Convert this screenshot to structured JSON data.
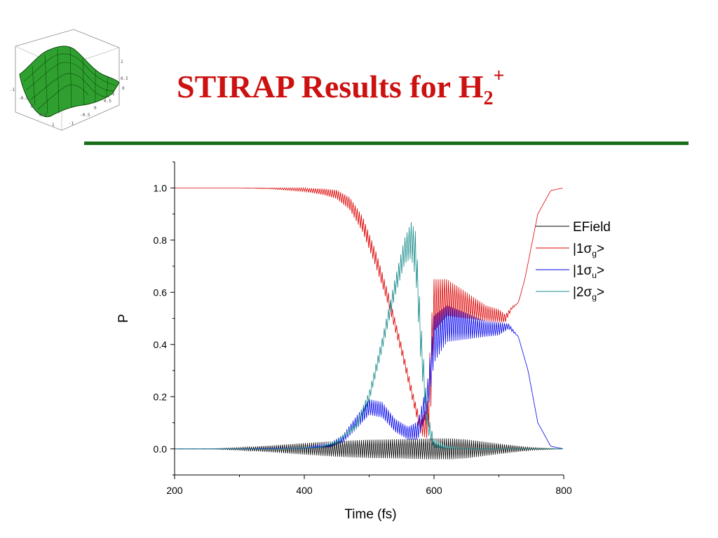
{
  "slide": {
    "title_main": "STIRAP Results for H",
    "title_sub": "2",
    "title_sup": "+",
    "rule_color": "#1a6e1a",
    "title_color": "#cc1111",
    "logo_icon": "3d-surface-plot-icon"
  },
  "chart_data": {
    "type": "line",
    "title": "",
    "xlabel": "Time (fs)",
    "ylabel": "P",
    "xlim": [
      200,
      800
    ],
    "ylim": [
      -0.1,
      1.1
    ],
    "x_ticks": [
      200,
      400,
      600,
      800
    ],
    "x_tick_labels": [
      "200",
      "400",
      "600",
      "800"
    ],
    "y_ticks": [
      0.0,
      0.2,
      0.4,
      0.6,
      0.8,
      1.0
    ],
    "y_tick_labels": [
      "0.0",
      "0.2",
      "0.4",
      "0.6",
      "0.8",
      "1.0"
    ],
    "grid": false,
    "legend_position": "right",
    "series": [
      {
        "name": "EField",
        "legend_main": "EField",
        "legend_sub": "",
        "legend_suffix": "",
        "color": "#000000",
        "oscillating": true,
        "x": [
          200,
          260,
          300,
          350,
          400,
          450,
          500,
          550,
          600,
          625,
          650,
          700,
          750,
          800
        ],
        "center": [
          0,
          0,
          0,
          0,
          0,
          0,
          0,
          0,
          0,
          0,
          0,
          0,
          0,
          0
        ],
        "amplitude": [
          0,
          0.001,
          0.005,
          0.013,
          0.022,
          0.03,
          0.035,
          0.037,
          0.04,
          0.04,
          0.036,
          0.02,
          0.005,
          0
        ]
      },
      {
        "name": "|1σg>",
        "legend_main": "|1σ",
        "legend_sub": "g",
        "legend_suffix": ">",
        "color": "#dd0000",
        "oscillating": true,
        "x": [
          200,
          300,
          350,
          400,
          430,
          450,
          470,
          490,
          510,
          530,
          550,
          570,
          580,
          590,
          595,
          600,
          620,
          650,
          680,
          700,
          710,
          720,
          730,
          740,
          760,
          780,
          800
        ],
        "center": [
          1.0,
          1.0,
          0.998,
          0.993,
          0.985,
          0.975,
          0.94,
          0.86,
          0.73,
          0.57,
          0.38,
          0.17,
          0.08,
          0.1,
          0.3,
          0.55,
          0.58,
          0.55,
          0.52,
          0.51,
          0.5,
          0.54,
          0.56,
          0.65,
          0.9,
          0.99,
          1.0
        ],
        "amplitude": [
          0,
          0,
          0.002,
          0.007,
          0.012,
          0.017,
          0.024,
          0.03,
          0.03,
          0.025,
          0.02,
          0.02,
          0.03,
          0.06,
          0.15,
          0.1,
          0.07,
          0.05,
          0.03,
          0.025,
          0.015,
          0.005,
          0,
          0,
          0,
          0,
          0
        ]
      },
      {
        "name": "|1σu>",
        "legend_main": "|1σ",
        "legend_sub": "u",
        "legend_suffix": ">",
        "color": "#0000ee",
        "oscillating": true,
        "x": [
          200,
          300,
          400,
          440,
          460,
          480,
          500,
          520,
          540,
          560,
          575,
          590,
          600,
          620,
          650,
          680,
          700,
          715,
          730,
          745,
          760,
          780,
          800
        ],
        "center": [
          0,
          0,
          0.003,
          0.015,
          0.04,
          0.1,
          0.16,
          0.15,
          0.09,
          0.06,
          0.07,
          0.2,
          0.42,
          0.48,
          0.47,
          0.46,
          0.46,
          0.47,
          0.43,
          0.3,
          0.1,
          0.01,
          0
        ],
        "amplitude": [
          0,
          0,
          0.002,
          0.007,
          0.015,
          0.025,
          0.03,
          0.03,
          0.025,
          0.025,
          0.035,
          0.06,
          0.09,
          0.07,
          0.05,
          0.03,
          0.025,
          0.01,
          0,
          0,
          0,
          0,
          0
        ]
      },
      {
        "name": "|2σg>",
        "legend_main": "|2σ",
        "legend_sub": "g",
        "legend_suffix": ">",
        "color": "#1a8c8c",
        "oscillating": true,
        "x": [
          200,
          350,
          420,
          450,
          480,
          500,
          520,
          540,
          555,
          565,
          572,
          580,
          590,
          600,
          620,
          650,
          700,
          800
        ],
        "center": [
          0,
          0,
          0.005,
          0.025,
          0.09,
          0.2,
          0.4,
          0.62,
          0.76,
          0.8,
          0.74,
          0.4,
          0.1,
          0.02,
          0.005,
          0.001,
          0,
          0
        ],
        "amplitude": [
          0,
          0,
          0.002,
          0.006,
          0.012,
          0.02,
          0.025,
          0.035,
          0.05,
          0.07,
          0.09,
          0.08,
          0.04,
          0.015,
          0.005,
          0,
          0,
          0
        ]
      }
    ]
  }
}
